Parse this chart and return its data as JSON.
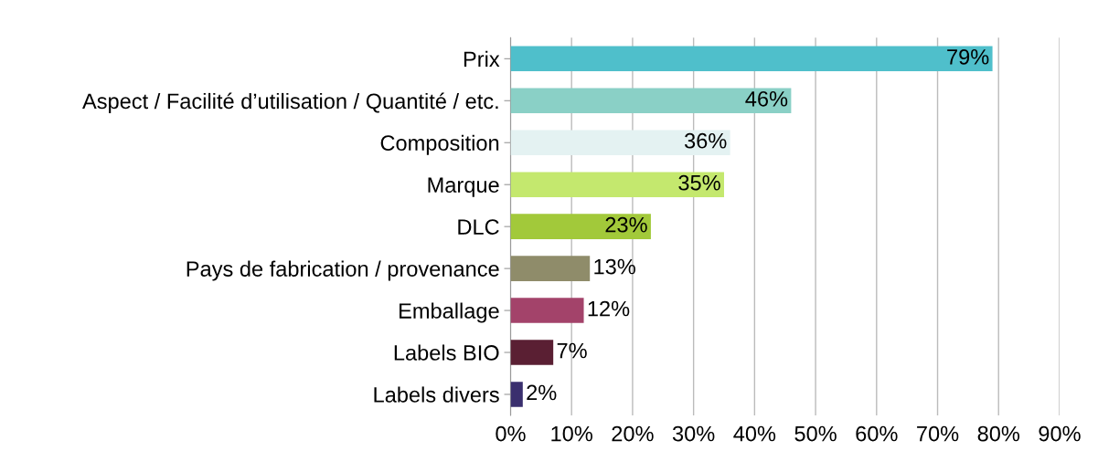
{
  "chart_data": {
    "type": "bar",
    "orientation": "horizontal",
    "categories": [
      "Prix",
      "Aspect / Facilité d’utilisation / Quantité / etc.",
      "Composition",
      "Marque",
      "DLC",
      "Pays de fabrication / provenance",
      "Emballage",
      "Labels BIO",
      "Labels divers"
    ],
    "values": [
      79,
      46,
      36,
      35,
      23,
      13,
      12,
      7,
      2
    ],
    "colors": [
      "#4fbfcb",
      "#8ad0c6",
      "#e4f2f2",
      "#c4e86e",
      "#a2c93a",
      "#8f8c6a",
      "#a3436a",
      "#5a1f33",
      "#3a2f6e"
    ],
    "value_labels": [
      "79%",
      "46%",
      "36%",
      "35%",
      "23%",
      "13%",
      "12%",
      "7%",
      "2%"
    ],
    "xlim": [
      0,
      90
    ],
    "xticks": [
      {
        "value": 0,
        "label": "0%"
      },
      {
        "value": 10,
        "label": "10%"
      },
      {
        "value": 20,
        "label": "20%"
      },
      {
        "value": 30,
        "label": "30%"
      },
      {
        "value": 40,
        "label": "40%"
      },
      {
        "value": 50,
        "label": "50%"
      },
      {
        "value": 60,
        "label": "60%"
      },
      {
        "value": 70,
        "label": "70%"
      },
      {
        "value": 80,
        "label": "80%"
      },
      {
        "value": 90,
        "label": "90%"
      }
    ],
    "grid": "x",
    "legend": false
  }
}
